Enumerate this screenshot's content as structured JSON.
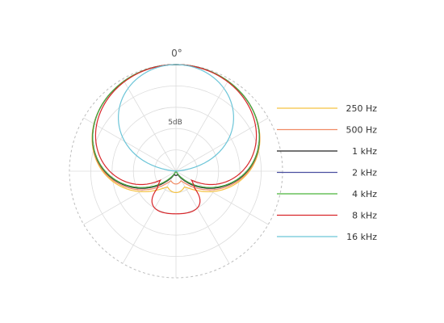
{
  "chart_data": {
    "type": "polar",
    "angle_label": "0°",
    "radius_label": "5dB",
    "rings_db": [
      0,
      -5,
      -10,
      -15,
      -20,
      -25
    ],
    "spokes_deg": 30,
    "grid": true,
    "legend_position": "right",
    "series": [
      {
        "name": "250 Hz",
        "color": "#f5c242",
        "rear_db": -20,
        "side_db": -1.5,
        "pattern": "cardioid"
      },
      {
        "name": "500 Hz",
        "color": "#f08a63",
        "rear_db": -22,
        "side_db": -1.8,
        "pattern": "cardioid"
      },
      {
        "name": "1 kHz",
        "color": "#222222",
        "rear_db": -24,
        "side_db": -2.2,
        "pattern": "cardioid"
      },
      {
        "name": "2 kHz",
        "color": "#4a4fa0",
        "rear_db": -25,
        "side_db": -2.6,
        "pattern": "cardioid"
      },
      {
        "name": "4 kHz",
        "color": "#4bb33b",
        "rear_db": -25,
        "side_db": -2.8,
        "pattern": "cardioid"
      },
      {
        "name": "8 kHz",
        "color": "#d8262a",
        "rear_db": -15,
        "side_db": -3.0,
        "pattern": "hypercardioid"
      },
      {
        "name": "16 kHz",
        "color": "#6cc5d8",
        "rear_db": -25,
        "side_db": -6.5,
        "pattern": "narrow"
      }
    ]
  }
}
